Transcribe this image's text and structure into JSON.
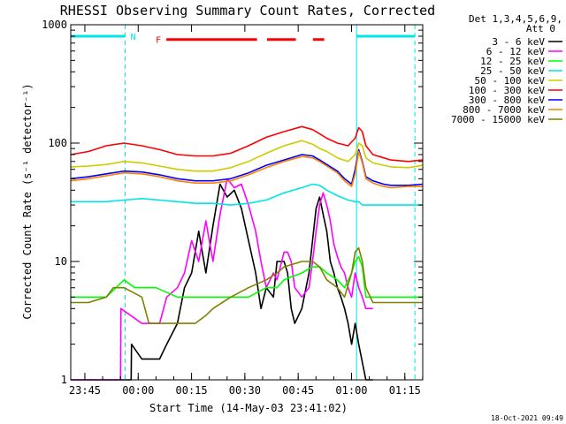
{
  "chart_data": {
    "type": "line",
    "title": "RHESSI Observing Summary Count Rates, Corrected",
    "xlabel": "Start Time (14-May-03 23:41:02)",
    "ylabel": "Corrected Count Rate (s⁻¹ detector⁻¹)",
    "y_scale": "log",
    "ylim": [
      1,
      1000
    ],
    "x_unit": "minutes since 23:41:02 UT, 14-May-03",
    "xlim": [
      0,
      99
    ],
    "x_tick_values": [
      3.97,
      18.97,
      33.97,
      48.97,
      63.97,
      78.97,
      93.97
    ],
    "x_tick_labels": [
      "23:45",
      "00:00",
      "00:15",
      "00:30",
      "00:45",
      "01:00",
      "01:15"
    ],
    "y_tick_values": [
      1,
      10,
      100,
      1000
    ],
    "y_tick_labels": [
      "1",
      "10",
      "100",
      "1000"
    ],
    "grid": false,
    "legend_position": "right",
    "info": {
      "detectors": "Det 1,3,4,5,6,9,",
      "attenuator": "Att 0"
    },
    "timestamp": "18-Oct-2021 09:49",
    "flags": [
      {
        "label": "N",
        "color": "#00e5e5",
        "y": 800,
        "segments": [
          [
            0,
            15.3
          ],
          [
            80.4,
            96.8
          ]
        ]
      },
      {
        "label": "F",
        "color": "#ff0000",
        "y": 750,
        "segments": [
          [
            26.9,
            52.4
          ],
          [
            55.2,
            63.3
          ],
          [
            68.1,
            71.3
          ]
        ]
      }
    ],
    "vlines": [
      {
        "x": 15.3,
        "style": "dashed",
        "color": "#00e5e5"
      },
      {
        "x": 80.4,
        "style": "solid",
        "color": "#00e5e5"
      },
      {
        "x": 96.8,
        "style": "dashed",
        "color": "#00e5e5"
      }
    ],
    "series": [
      {
        "name": "3 - 6 keV",
        "color": "#000000",
        "x": [
          0,
          15,
          17,
          17.1,
          20,
          25,
          27,
          30,
          32,
          34,
          36,
          38,
          40,
          42,
          44,
          46,
          48,
          50,
          52,
          53.5,
          55,
          57,
          58,
          60,
          61,
          62,
          63,
          65,
          67,
          68,
          69,
          70,
          71,
          72,
          73,
          74,
          75,
          76,
          77,
          78,
          79,
          80,
          81,
          83,
          85
        ],
        "y": [
          1,
          1,
          1,
          2,
          1.5,
          1.5,
          2,
          3,
          6,
          8,
          18,
          8,
          20,
          45,
          35,
          40,
          28,
          15,
          8,
          4,
          6,
          5,
          10,
          10,
          8,
          4,
          3,
          4,
          8,
          15,
          28,
          35,
          25,
          18,
          10,
          8,
          6,
          5,
          4,
          3,
          2,
          3,
          2,
          1,
          1
        ]
      },
      {
        "name": "6 - 12 keV",
        "color": "#ff00ff",
        "x": [
          0,
          14,
          14.1,
          20,
          25,
          27,
          30,
          32,
          34,
          36,
          38,
          40,
          42,
          44,
          46,
          48,
          50,
          52,
          53.5,
          55,
          57,
          58,
          60,
          61,
          62,
          63,
          65,
          67,
          68,
          69,
          70,
          71,
          72,
          73,
          74,
          75,
          76,
          77,
          78,
          79,
          80,
          81,
          82,
          83,
          85
        ],
        "y": [
          1,
          1,
          4,
          3,
          3,
          5,
          6,
          8,
          15,
          10,
          22,
          10,
          25,
          50,
          42,
          45,
          30,
          18,
          10,
          6,
          8,
          7,
          12,
          12,
          10,
          6,
          5,
          6,
          10,
          18,
          30,
          38,
          30,
          22,
          14,
          11,
          9,
          8,
          6,
          5,
          8,
          6,
          5,
          4,
          4
        ]
      },
      {
        "name": "12 - 25 keV",
        "color": "#00ff00",
        "x": [
          0,
          10,
          15,
          18,
          24,
          30,
          40,
          48,
          50,
          55,
          58,
          60,
          65,
          68,
          70,
          72,
          75,
          77,
          79,
          80,
          81,
          82,
          83,
          85,
          90,
          95,
          99
        ],
        "y": [
          5,
          5,
          7,
          6,
          6,
          5,
          5,
          5,
          5,
          6,
          6,
          7,
          8,
          9,
          9,
          8,
          7,
          6,
          8,
          10,
          11,
          9,
          5,
          5,
          5,
          5,
          5
        ]
      },
      {
        "name": "25 - 50 keV",
        "color": "#00e5e5",
        "x": [
          0,
          10,
          15,
          20,
          25,
          30,
          35,
          40,
          45,
          50,
          55,
          60,
          65,
          68,
          70,
          72,
          75,
          78,
          80,
          81,
          82,
          85,
          90,
          95,
          99
        ],
        "y": [
          32,
          32,
          33,
          34,
          33,
          32,
          31,
          31,
          30,
          31,
          33,
          38,
          42,
          45,
          44,
          40,
          36,
          33,
          32,
          32,
          30,
          30,
          30,
          30,
          30
        ]
      },
      {
        "name": "50 - 100 keV",
        "color": "#cccc00",
        "x": [
          0,
          5,
          10,
          15,
          20,
          25,
          30,
          35,
          40,
          45,
          50,
          55,
          60,
          65,
          68,
          70,
          72,
          75,
          78,
          80,
          81,
          82,
          83,
          85,
          88,
          90,
          95,
          99
        ],
        "y": [
          63,
          64,
          66,
          70,
          68,
          64,
          60,
          58,
          58,
          62,
          70,
          82,
          95,
          105,
          98,
          90,
          85,
          75,
          70,
          80,
          100,
          95,
          75,
          68,
          65,
          63,
          62,
          65
        ]
      },
      {
        "name": "100 - 300 keV",
        "color": "#ff0000",
        "x": [
          0,
          5,
          10,
          15,
          20,
          25,
          30,
          35,
          40,
          45,
          50,
          55,
          60,
          65,
          68,
          70,
          72,
          75,
          78,
          80,
          81,
          82,
          83,
          85,
          88,
          90,
          95,
          99
        ],
        "y": [
          80,
          85,
          95,
          100,
          95,
          88,
          80,
          78,
          78,
          82,
          95,
          112,
          125,
          138,
          130,
          120,
          110,
          100,
          95,
          110,
          135,
          125,
          95,
          80,
          75,
          72,
          70,
          72
        ]
      },
      {
        "name": "300 - 800 keV",
        "color": "#0000ff",
        "x": [
          0,
          5,
          10,
          15,
          20,
          25,
          30,
          35,
          40,
          45,
          50,
          55,
          60,
          65,
          68,
          70,
          72,
          75,
          77,
          79,
          80,
          81,
          82,
          83,
          85,
          88,
          90,
          95,
          99
        ],
        "y": [
          50,
          52,
          55,
          58,
          57,
          54,
          50,
          48,
          48,
          50,
          56,
          65,
          72,
          80,
          78,
          72,
          66,
          58,
          50,
          45,
          60,
          88,
          70,
          52,
          48,
          45,
          44,
          44,
          45
        ]
      },
      {
        "name": "800 - 7000 keV",
        "color": "#ff8000",
        "x": [
          0,
          5,
          10,
          15,
          20,
          25,
          30,
          35,
          40,
          45,
          50,
          55,
          60,
          65,
          68,
          70,
          72,
          75,
          77,
          79,
          80,
          81,
          82,
          83,
          85,
          88,
          90,
          95,
          99
        ],
        "y": [
          48,
          50,
          53,
          56,
          55,
          52,
          48,
          46,
          46,
          48,
          54,
          62,
          70,
          77,
          75,
          70,
          64,
          56,
          48,
          43,
          55,
          85,
          68,
          50,
          46,
          43,
          42,
          43,
          43
        ]
      },
      {
        "name": "7000 - 15000 keV",
        "color": "#808000",
        "x": [
          0,
          5,
          10,
          12,
          15,
          20,
          22,
          24,
          26,
          30,
          35,
          38,
          40,
          45,
          50,
          55,
          58,
          60,
          65,
          68,
          70,
          72,
          75,
          77,
          79,
          80,
          81,
          82,
          83,
          85,
          90,
          95,
          99
        ],
        "y": [
          4.5,
          4.5,
          5,
          6,
          6,
          5,
          3,
          3,
          3,
          3,
          3,
          3.5,
          4,
          5,
          6,
          7,
          8,
          9,
          10,
          10,
          9,
          7,
          6,
          5,
          8,
          12,
          13,
          10,
          6,
          4.5,
          4.5,
          4.5,
          4.5
        ]
      }
    ]
  }
}
